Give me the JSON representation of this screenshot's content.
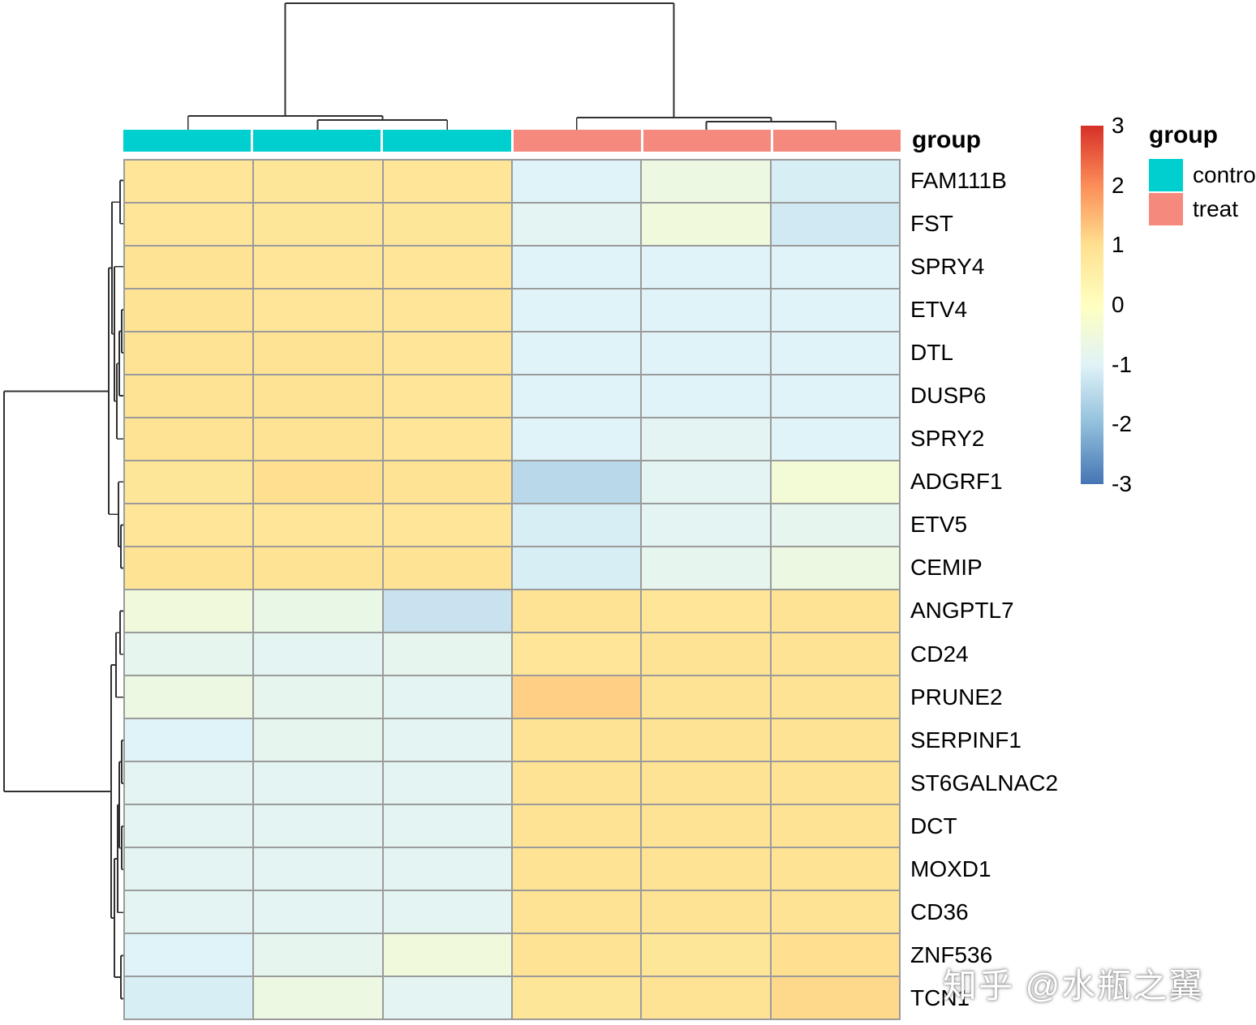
{
  "chart_data": {
    "type": "heatmap",
    "annotation_row_label": "group",
    "genes": [
      "FAM111B",
      "FST",
      "SPRY4",
      "ETV4",
      "DTL",
      "DUSP6",
      "SPRY2",
      "ADGRF1",
      "ETV5",
      "CEMIP",
      "ANGPTL7",
      "CD24",
      "PRUNE2",
      "SERPINF1",
      "ST6GALNAC2",
      "DCT",
      "MOXD1",
      "CD36",
      "ZNF536",
      "TCN1"
    ],
    "column_groups": [
      "control",
      "control",
      "control",
      "treat",
      "treat",
      "treat"
    ],
    "group_colors": {
      "control": "#00CFCF",
      "treat": "#F5897D"
    },
    "values": [
      [
        0.85,
        0.8,
        0.85,
        -1.0,
        -0.6,
        -1.1
      ],
      [
        0.85,
        0.8,
        0.8,
        -0.9,
        -0.5,
        -1.2
      ],
      [
        0.9,
        0.85,
        0.85,
        -1.0,
        -1.0,
        -1.0
      ],
      [
        0.9,
        0.85,
        0.85,
        -1.0,
        -1.0,
        -1.0
      ],
      [
        0.9,
        0.9,
        0.85,
        -1.0,
        -1.0,
        -1.0
      ],
      [
        0.9,
        0.9,
        0.85,
        -1.0,
        -1.0,
        -1.0
      ],
      [
        0.9,
        0.9,
        0.85,
        -1.0,
        -0.9,
        -1.0
      ],
      [
        0.8,
        1.0,
        0.9,
        -1.5,
        -0.9,
        -0.4
      ],
      [
        0.85,
        0.85,
        0.85,
        -1.1,
        -0.9,
        -0.8
      ],
      [
        0.9,
        0.9,
        0.9,
        -1.1,
        -0.8,
        -0.6
      ],
      [
        -0.5,
        -0.7,
        -1.3,
        0.9,
        0.85,
        0.9
      ],
      [
        -0.8,
        -0.9,
        -0.8,
        0.85,
        0.9,
        0.9
      ],
      [
        -0.6,
        -0.8,
        -0.9,
        1.2,
        0.9,
        0.9
      ],
      [
        -1.0,
        -0.8,
        -0.9,
        0.9,
        0.9,
        0.9
      ],
      [
        -0.9,
        -0.9,
        -0.9,
        0.9,
        0.9,
        0.9
      ],
      [
        -0.9,
        -0.9,
        -0.9,
        0.9,
        0.9,
        0.9
      ],
      [
        -0.9,
        -0.9,
        -0.9,
        0.9,
        0.9,
        0.9
      ],
      [
        -0.9,
        -0.9,
        -0.9,
        0.9,
        0.9,
        0.9
      ],
      [
        -1.0,
        -0.8,
        -0.5,
        0.9,
        0.8,
        1.0
      ],
      [
        -1.1,
        -0.6,
        -0.9,
        0.8,
        0.9,
        1.1
      ]
    ],
    "value_range": [
      -3,
      3
    ],
    "colormap": {
      "stops": [
        -3,
        -2,
        -1,
        0,
        1,
        2,
        3
      ],
      "colors": [
        "#4575B4",
        "#91BFDB",
        "#E0F3F8",
        "#FFFFBF",
        "#FEE090",
        "#FC8D59",
        "#D73027"
      ]
    },
    "colorbar_tick_labels": [
      "3",
      "2",
      "1",
      "0",
      "-1",
      "-2",
      "-3"
    ],
    "grid_line_color": "#9b9b9b",
    "dendrogram_line_color": "#303030",
    "col_dendrogram_segments": [
      [
        79.8,
        143,
        79.8,
        160
      ],
      [
        239.5,
        148,
        239.5,
        160
      ],
      [
        399.2,
        148,
        399.2,
        160
      ],
      [
        239.5,
        148,
        399.2,
        148
      ],
      [
        319.4,
        143,
        319.4,
        148
      ],
      [
        79.8,
        143,
        319.4,
        143
      ],
      [
        199.6,
        4,
        199.6,
        143
      ],
      [
        558.8,
        145,
        558.8,
        160
      ],
      [
        718.5,
        150,
        718.5,
        160
      ],
      [
        878.2,
        150,
        878.2,
        160
      ],
      [
        718.5,
        150,
        878.2,
        150
      ],
      [
        798.4,
        145,
        798.4,
        150
      ],
      [
        558.8,
        145,
        798.4,
        145
      ],
      [
        678.6,
        4,
        678.6,
        145
      ],
      [
        199.6,
        4,
        678.6,
        4
      ]
    ],
    "row_dendrogram_segments": [
      [
        148,
        26.6,
        152,
        26.6
      ],
      [
        148,
        79.7,
        152,
        79.7
      ],
      [
        148,
        26.6,
        148,
        79.7
      ],
      [
        138,
        53.2,
        148,
        53.2
      ],
      [
        141,
        132.8,
        152,
        132.8
      ],
      [
        150,
        185.9,
        152,
        185.9
      ],
      [
        150,
        239,
        152,
        239
      ],
      [
        150,
        185.9,
        150,
        239
      ],
      [
        147,
        212.5,
        150,
        212.5
      ],
      [
        147,
        292.1,
        152,
        292.1
      ],
      [
        147,
        212.5,
        147,
        292.1
      ],
      [
        144,
        252.3,
        147,
        252.3
      ],
      [
        144,
        345.2,
        152,
        345.2
      ],
      [
        144,
        252.3,
        144,
        345.2
      ],
      [
        141,
        298.8,
        144,
        298.8
      ],
      [
        141,
        132.8,
        141,
        298.8
      ],
      [
        138,
        215.8,
        141,
        215.8
      ],
      [
        138,
        53.2,
        138,
        215.8
      ],
      [
        134,
        134.5,
        138,
        134.5
      ],
      [
        146,
        398.3,
        152,
        398.3
      ],
      [
        149,
        451.4,
        152,
        451.4
      ],
      [
        149,
        504.5,
        152,
        504.5
      ],
      [
        149,
        451.4,
        149,
        504.5
      ],
      [
        146,
        478,
        149,
        478
      ],
      [
        146,
        398.3,
        146,
        478
      ],
      [
        134,
        438.2,
        146,
        438.2
      ],
      [
        134,
        134.5,
        134,
        438.2
      ],
      [
        5,
        286.4,
        134,
        286.4
      ],
      [
        148,
        557.6,
        152,
        557.6
      ],
      [
        148,
        610.7,
        152,
        610.7
      ],
      [
        148,
        557.6,
        148,
        610.7
      ],
      [
        143,
        584.2,
        148,
        584.2
      ],
      [
        143,
        663.8,
        152,
        663.8
      ],
      [
        143,
        584.2,
        143,
        663.8
      ],
      [
        137,
        624,
        143,
        624
      ],
      [
        150,
        716.9,
        152,
        716.9
      ],
      [
        150,
        770,
        152,
        770
      ],
      [
        150,
        716.9,
        150,
        770
      ],
      [
        147,
        743.5,
        150,
        743.5
      ],
      [
        150,
        823.1,
        152,
        823.1
      ],
      [
        150,
        876.2,
        152,
        876.2
      ],
      [
        150,
        823.1,
        150,
        876.2
      ],
      [
        147,
        849.7,
        150,
        849.7
      ],
      [
        147,
        743.5,
        147,
        849.7
      ],
      [
        145,
        796.6,
        147,
        796.6
      ],
      [
        145,
        929.3,
        152,
        929.3
      ],
      [
        145,
        796.6,
        145,
        929.3
      ],
      [
        141,
        863,
        145,
        863
      ],
      [
        149,
        982.4,
        152,
        982.4
      ],
      [
        149,
        1035.5,
        152,
        1035.5
      ],
      [
        149,
        982.4,
        149,
        1035.5
      ],
      [
        141,
        1009,
        149,
        1009
      ],
      [
        141,
        863,
        141,
        1009
      ],
      [
        137,
        936,
        141,
        936
      ],
      [
        137,
        624,
        137,
        936
      ],
      [
        5,
        780,
        137,
        780
      ],
      [
        5,
        286.4,
        5,
        780
      ]
    ]
  },
  "legend": {
    "title": "group",
    "items": [
      {
        "label": "contro",
        "color": "#00CFCF"
      },
      {
        "label": "treat",
        "color": "#F5897D"
      }
    ]
  },
  "watermark": "知乎 @水瓶之翼"
}
